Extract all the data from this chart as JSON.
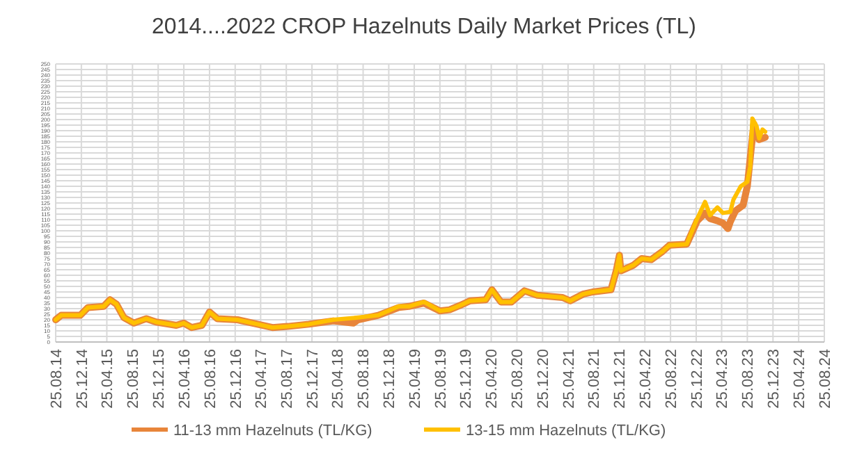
{
  "chart_data": {
    "type": "line",
    "title": "2014....2022 CROP Hazelnuts Daily Market Prices (TL)",
    "xlim": [
      "2014-08-25",
      "2024-08-25"
    ],
    "xticks": [
      {
        "value": "2014-08-25",
        "label": "25.08.14"
      },
      {
        "value": "2014-12-25",
        "label": "25.12.14"
      },
      {
        "value": "2015-04-25",
        "label": "25.04.15"
      },
      {
        "value": "2015-08-25",
        "label": "25.08.15"
      },
      {
        "value": "2015-12-25",
        "label": "25.12.15"
      },
      {
        "value": "2016-04-25",
        "label": "25.04.16"
      },
      {
        "value": "2016-08-25",
        "label": "25.08.16"
      },
      {
        "value": "2016-12-25",
        "label": "25.12.16"
      },
      {
        "value": "2017-04-25",
        "label": "25.04.17"
      },
      {
        "value": "2017-08-25",
        "label": "25.08.17"
      },
      {
        "value": "2017-12-25",
        "label": "25.12.17"
      },
      {
        "value": "2018-04-25",
        "label": "25.04.18"
      },
      {
        "value": "2018-08-25",
        "label": "25.08.18"
      },
      {
        "value": "2018-12-25",
        "label": "25.12.18"
      },
      {
        "value": "2019-04-25",
        "label": "25.04.19"
      },
      {
        "value": "2019-08-25",
        "label": "25.08.19"
      },
      {
        "value": "2019-12-25",
        "label": "25.12.19"
      },
      {
        "value": "2020-04-25",
        "label": "25.04.20"
      },
      {
        "value": "2020-08-25",
        "label": "25.08.20"
      },
      {
        "value": "2020-12-25",
        "label": "25.12.20"
      },
      {
        "value": "2021-04-25",
        "label": "25.04.21"
      },
      {
        "value": "2021-08-25",
        "label": "25.08.21"
      },
      {
        "value": "2021-12-25",
        "label": "25.12.21"
      },
      {
        "value": "2022-04-25",
        "label": "25.04.22"
      },
      {
        "value": "2022-08-25",
        "label": "25.08.22"
      },
      {
        "value": "2022-12-25",
        "label": "25.12.22"
      },
      {
        "value": "2023-04-25",
        "label": "25.04.23"
      },
      {
        "value": "2023-08-25",
        "label": "25.08.23"
      },
      {
        "value": "2023-12-25",
        "label": "25.12.23"
      },
      {
        "value": "2024-04-25",
        "label": "25.04.24"
      },
      {
        "value": "2024-08-25",
        "label": "25.08.24"
      }
    ],
    "ylim": [
      0,
      250
    ],
    "yticks": [
      0,
      5,
      10,
      15,
      20,
      25,
      30,
      35,
      40,
      45,
      50,
      55,
      60,
      65,
      70,
      75,
      80,
      85,
      90,
      95,
      100,
      105,
      110,
      115,
      120,
      125,
      130,
      135,
      140,
      145,
      150,
      155,
      160,
      165,
      170,
      175,
      180,
      185,
      190,
      195,
      200,
      205,
      210,
      215,
      220,
      225,
      230,
      235,
      240,
      245,
      250
    ],
    "grid": true,
    "legend": "bottom",
    "marker": "none",
    "line_style": "solid",
    "series": [
      {
        "name": "11-13 mm Hazelnuts (TL/KG)",
        "color": "#e8853a",
        "x": [
          "2014-08-25",
          "2014-09-20",
          "2014-12-20",
          "2015-01-25",
          "2015-04-10",
          "2015-05-10",
          "2015-06-10",
          "2015-07-15",
          "2015-09-01",
          "2015-10-30",
          "2015-12-15",
          "2016-03-20",
          "2016-04-25",
          "2016-06-01",
          "2016-07-20",
          "2016-08-25",
          "2016-10-01",
          "2017-01-05",
          "2017-04-10",
          "2017-06-20",
          "2017-09-01",
          "2017-12-10",
          "2018-04-05",
          "2018-07-10",
          "2018-08-01",
          "2018-11-05",
          "2019-02-10",
          "2019-03-30",
          "2019-06-10",
          "2019-08-25",
          "2019-10-10",
          "2019-11-30",
          "2020-01-15",
          "2020-03-30",
          "2020-04-28",
          "2020-06-10",
          "2020-07-30",
          "2020-09-30",
          "2020-11-30",
          "2021-03-30",
          "2021-05-05",
          "2021-07-05",
          "2021-08-20",
          "2021-11-15",
          "2021-12-10",
          "2021-12-25",
          "2022-01-01",
          "2022-03-01",
          "2022-04-10",
          "2022-05-25",
          "2022-07-15",
          "2022-08-20",
          "2022-11-10",
          "2022-12-30",
          "2023-02-05",
          "2023-03-01",
          "2023-04-05",
          "2023-05-01",
          "2023-05-25",
          "2023-06-05",
          "2023-06-30",
          "2023-08-05",
          "2023-08-25",
          "2023-09-12",
          "2023-09-25",
          "2023-10-20",
          "2023-11-18"
        ],
        "values": [
          20,
          24,
          24,
          31,
          32,
          38,
          34,
          22,
          17,
          21,
          18,
          15,
          17,
          13,
          15,
          27,
          21,
          20,
          16,
          13,
          14,
          16,
          19,
          17,
          20,
          24,
          31,
          32,
          35,
          28,
          29,
          33,
          37,
          38,
          47,
          36,
          36,
          46,
          42,
          40,
          37,
          43,
          45,
          47,
          64,
          78,
          64,
          69,
          75,
          74,
          81,
          87,
          88,
          109,
          116,
          111,
          109,
          107,
          102,
          108,
          118,
          123,
          140,
          173,
          196,
          182,
          184
        ]
      },
      {
        "name": "13-15 mm Hazelnuts (TL/KG)",
        "color": "#ffc000",
        "x": [
          "2014-08-25",
          "2014-09-20",
          "2014-12-20",
          "2015-01-25",
          "2015-04-10",
          "2015-05-10",
          "2015-06-10",
          "2015-07-15",
          "2015-09-01",
          "2015-10-30",
          "2015-12-15",
          "2016-03-20",
          "2016-04-25",
          "2016-06-01",
          "2016-07-20",
          "2016-08-25",
          "2016-10-01",
          "2017-01-05",
          "2017-04-10",
          "2017-06-20",
          "2017-09-01",
          "2017-12-10",
          "2018-04-05",
          "2018-08-01",
          "2018-11-05",
          "2019-02-10",
          "2019-03-30",
          "2019-06-10",
          "2019-08-25",
          "2019-10-10",
          "2019-11-30",
          "2020-01-15",
          "2020-03-30",
          "2020-04-28",
          "2020-06-10",
          "2020-07-30",
          "2020-09-30",
          "2020-11-30",
          "2021-03-30",
          "2021-05-05",
          "2021-07-05",
          "2021-08-20",
          "2021-11-15",
          "2021-12-10",
          "2021-12-25",
          "2022-01-01",
          "2022-03-01",
          "2022-04-10",
          "2022-05-25",
          "2022-07-15",
          "2022-08-20",
          "2022-11-10",
          "2022-12-30",
          "2023-02-05",
          "2023-03-01",
          "2023-04-05",
          "2023-05-01",
          "2023-06-05",
          "2023-06-20",
          "2023-07-25",
          "2023-08-25",
          "2023-09-08",
          "2023-09-18",
          "2023-10-08",
          "2023-10-20",
          "2023-11-05",
          "2023-11-18"
        ],
        "values": [
          20,
          24,
          24,
          31,
          32,
          38,
          34,
          22,
          17,
          21,
          18,
          15,
          17,
          13,
          15,
          27,
          21,
          20,
          16,
          13,
          14,
          16,
          20,
          22,
          24,
          32,
          32,
          36,
          28,
          29,
          33,
          37,
          38,
          47,
          36,
          36,
          46,
          42,
          40,
          37,
          43,
          45,
          47,
          64,
          78,
          64,
          69,
          75,
          74,
          81,
          87,
          88,
          111,
          126,
          114,
          121,
          116,
          117,
          128,
          140,
          144,
          158,
          201,
          194,
          183,
          191,
          189
        ]
      }
    ]
  }
}
